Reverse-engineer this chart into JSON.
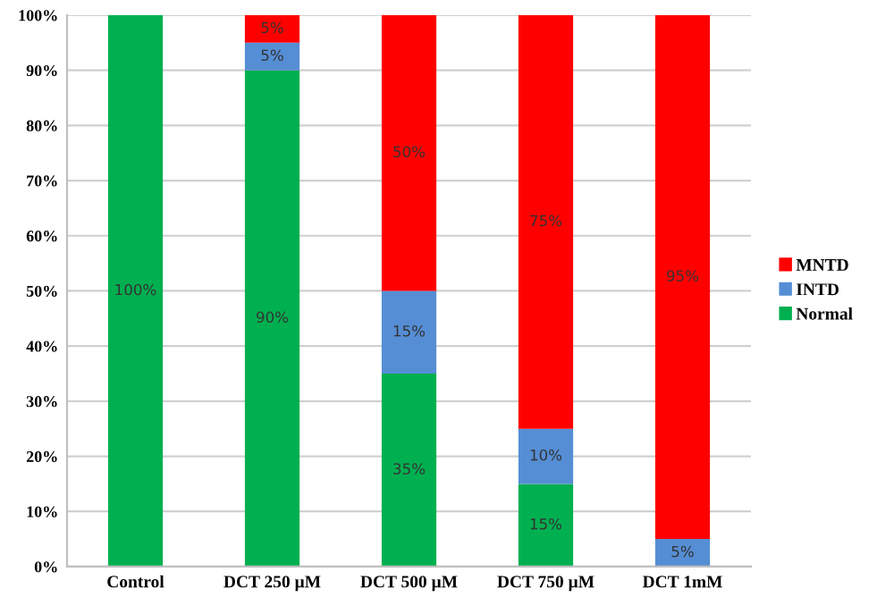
{
  "chart_data": {
    "type": "bar",
    "stacked": true,
    "categories": [
      "Control",
      "DCT 250 µM",
      "DCT 500 µM",
      "DCT 750 µM",
      "DCT 1mM"
    ],
    "series": [
      {
        "name": "Normal",
        "color": "#00b050",
        "values": [
          100,
          90,
          35,
          15,
          0
        ],
        "value_labels": [
          "100%",
          "90%",
          "35%",
          "15%",
          null
        ]
      },
      {
        "name": "INTD",
        "color": "#558ed5",
        "values": [
          0,
          5,
          15,
          10,
          5
        ],
        "value_labels": [
          null,
          "5%",
          "15%",
          "10%",
          "5%"
        ]
      },
      {
        "name": "MNTD",
        "color": "#ff0000",
        "values": [
          0,
          5,
          50,
          75,
          95
        ],
        "value_labels": [
          null,
          "5%",
          "50%",
          "75%",
          "95%"
        ]
      }
    ],
    "ylim": [
      0,
      100
    ],
    "yticks": [
      {
        "value": 0,
        "label": "0%"
      },
      {
        "value": 10,
        "label": "10%"
      },
      {
        "value": 20,
        "label": "20%"
      },
      {
        "value": 30,
        "label": "30%"
      },
      {
        "value": 40,
        "label": "40%"
      },
      {
        "value": 50,
        "label": "50%"
      },
      {
        "value": 60,
        "label": "60%"
      },
      {
        "value": 70,
        "label": "70%"
      },
      {
        "value": 80,
        "label": "80%"
      },
      {
        "value": 90,
        "label": "90%"
      },
      {
        "value": 100,
        "label": "100%"
      }
    ],
    "grid": "y",
    "legend": "right"
  }
}
